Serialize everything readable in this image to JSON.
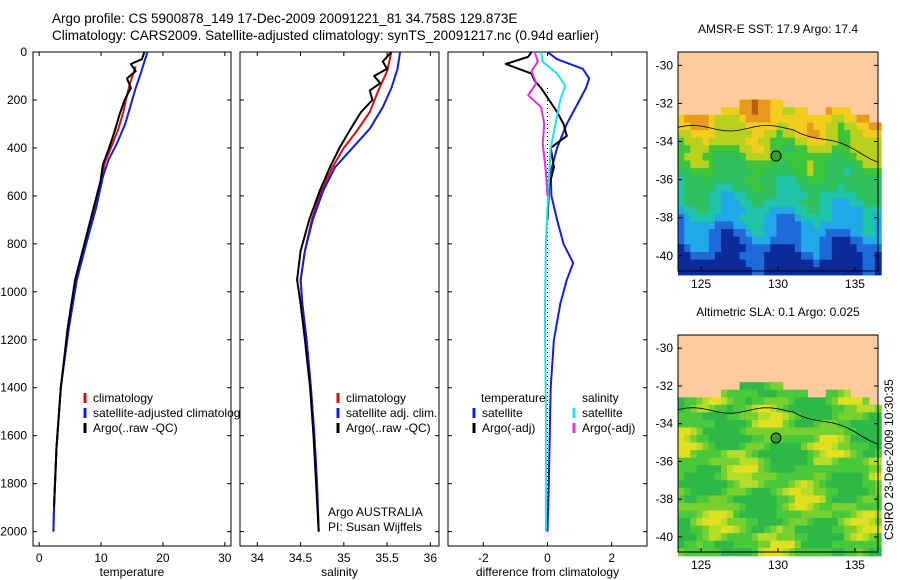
{
  "title_line1": "Argo profile: CS 5900878_149 17-Dec-2009 20091221_81 34.758S 129.873E",
  "title_line2": "Climatology: CARS2009. Satellite-adjusted climatology: synTS_20091217.nc (0.94d earlier)",
  "stamp": "CSIRO 23-Dec-2009 10:30:35",
  "colors": {
    "climatology": "#d01010",
    "satellite": "#1020d8",
    "argo": "#000000",
    "sal_satellite": "#20e0e8",
    "sal_argo": "#e030e0",
    "land": "#fdcb9c"
  },
  "chart_data": [
    {
      "type": "line",
      "name": "temperature-profile",
      "xlabel": "temperature",
      "xlim": [
        -1,
        31
      ],
      "ylim": [
        0,
        2060
      ],
      "xticks": [
        0,
        10,
        20,
        30
      ],
      "yticks": [
        0,
        200,
        400,
        600,
        800,
        1000,
        1200,
        1400,
        1600,
        1800,
        2000
      ],
      "legend": [
        "climatology",
        "satellite-adjusted climatology",
        "Argo(..raw -QC)"
      ],
      "series": [
        {
          "name": "climatology",
          "points": [
            [
              15.6,
              60
            ],
            [
              14.8,
              120
            ],
            [
              14.2,
              180
            ],
            [
              13.6,
              250
            ],
            [
              12.8,
              320
            ],
            [
              11.6,
              400
            ],
            [
              10.6,
              460
            ],
            [
              10.1,
              520
            ],
            [
              9.0,
              650
            ],
            [
              7.5,
              800
            ],
            [
              6.0,
              950
            ],
            [
              4.7,
              1150
            ],
            [
              3.5,
              1400
            ],
            [
              2.8,
              1650
            ],
            [
              2.4,
              1900
            ],
            [
              2.3,
              2000
            ]
          ]
        },
        {
          "name": "satellite-adjusted climatology",
          "points": [
            [
              17.5,
              0
            ],
            [
              17.0,
              40
            ],
            [
              16.4,
              90
            ],
            [
              15.6,
              150
            ],
            [
              14.8,
              220
            ],
            [
              13.9,
              300
            ],
            [
              12.6,
              380
            ],
            [
              11.2,
              450
            ],
            [
              10.3,
              520
            ],
            [
              9.2,
              650
            ],
            [
              7.6,
              800
            ],
            [
              6.1,
              950
            ],
            [
              4.8,
              1150
            ],
            [
              3.5,
              1400
            ],
            [
              2.8,
              1650
            ],
            [
              2.4,
              1900
            ],
            [
              2.3,
              2000
            ]
          ]
        },
        {
          "name": "Argo(..raw -QC)",
          "points": [
            [
              17.0,
              0
            ],
            [
              16.6,
              30
            ],
            [
              14.8,
              50
            ],
            [
              15.6,
              80
            ],
            [
              14.2,
              110
            ],
            [
              14.8,
              150
            ],
            [
              13.8,
              200
            ],
            [
              13.0,
              260
            ],
            [
              12.2,
              330
            ],
            [
              11.3,
              400
            ],
            [
              10.3,
              470
            ],
            [
              9.9,
              540
            ],
            [
              8.8,
              650
            ],
            [
              7.3,
              800
            ],
            [
              5.8,
              950
            ],
            [
              4.6,
              1150
            ],
            [
              3.5,
              1400
            ],
            [
              2.8,
              1650
            ],
            [
              2.4,
              1900
            ]
          ]
        }
      ]
    },
    {
      "type": "line",
      "name": "salinity-profile",
      "xlabel": "salinity",
      "xlim": [
        33.8,
        36.1
      ],
      "ylim": [
        0,
        2060
      ],
      "xticks": [
        34,
        34.5,
        35,
        35.5,
        36
      ],
      "legend": [
        "climatology",
        "satellite adj. clim.",
        "Argo(..raw -QC)"
      ],
      "annotation": [
        "Argo AUSTRALIA",
        "PI: Susan Wijffels"
      ],
      "series": [
        {
          "name": "climatology",
          "points": [
            [
              35.55,
              0
            ],
            [
              35.5,
              80
            ],
            [
              35.4,
              160
            ],
            [
              35.3,
              250
            ],
            [
              35.15,
              330
            ],
            [
              35.0,
              400
            ],
            [
              34.87,
              480
            ],
            [
              34.74,
              580
            ],
            [
              34.63,
              700
            ],
            [
              34.55,
              830
            ],
            [
              34.5,
              950
            ],
            [
              34.52,
              1050
            ],
            [
              34.57,
              1200
            ],
            [
              34.62,
              1400
            ],
            [
              34.66,
              1600
            ],
            [
              34.69,
              1800
            ],
            [
              34.71,
              2000
            ]
          ]
        },
        {
          "name": "satellite adj. clim.",
          "points": [
            [
              35.65,
              0
            ],
            [
              35.62,
              70
            ],
            [
              35.55,
              150
            ],
            [
              35.45,
              230
            ],
            [
              35.3,
              320
            ],
            [
              35.1,
              400
            ],
            [
              34.9,
              480
            ],
            [
              34.76,
              580
            ],
            [
              34.64,
              700
            ],
            [
              34.55,
              830
            ],
            [
              34.5,
              950
            ],
            [
              34.52,
              1050
            ],
            [
              34.57,
              1200
            ],
            [
              34.62,
              1400
            ],
            [
              34.66,
              1600
            ],
            [
              34.69,
              1800
            ],
            [
              34.71,
              2000
            ]
          ]
        },
        {
          "name": "Argo(..raw -QC)",
          "points": [
            [
              35.55,
              0
            ],
            [
              35.45,
              40
            ],
            [
              35.5,
              70
            ],
            [
              35.35,
              100
            ],
            [
              35.42,
              130
            ],
            [
              35.3,
              160
            ],
            [
              35.33,
              200
            ],
            [
              35.2,
              250
            ],
            [
              35.08,
              320
            ],
            [
              34.95,
              400
            ],
            [
              34.84,
              480
            ],
            [
              34.72,
              580
            ],
            [
              34.6,
              700
            ],
            [
              34.5,
              830
            ],
            [
              34.46,
              950
            ],
            [
              34.5,
              1050
            ],
            [
              34.55,
              1200
            ],
            [
              34.61,
              1400
            ],
            [
              34.65,
              1600
            ],
            [
              34.68,
              1800
            ],
            [
              34.71,
              2000
            ]
          ]
        }
      ]
    },
    {
      "type": "line",
      "name": "difference-profile",
      "xlabel": "difference from climatology",
      "xlim": [
        -3.1,
        3.1
      ],
      "ylim": [
        0,
        2060
      ],
      "xticks": [
        -2,
        0,
        2
      ],
      "legend_left": [
        "temperature",
        "satellite",
        "Argo(-adj)"
      ],
      "legend_right": [
        "salinity",
        "satellite",
        "Argo(-adj)"
      ],
      "series": [
        {
          "name": "temperature satellite",
          "points": [
            [
              0,
              0
            ],
            [
              0.3,
              30
            ],
            [
              1.1,
              70
            ],
            [
              1.3,
              110
            ],
            [
              1.2,
              150
            ],
            [
              1.0,
              200
            ],
            [
              0.6,
              300
            ],
            [
              0.3,
              400
            ],
            [
              0.1,
              500
            ],
            [
              0.12,
              600
            ],
            [
              0.3,
              700
            ],
            [
              0.5,
              800
            ],
            [
              0.8,
              880
            ],
            [
              0.6,
              950
            ],
            [
              0.4,
              1050
            ],
            [
              0.2,
              1200
            ],
            [
              0.1,
              1400
            ],
            [
              0.04,
              1800
            ],
            [
              0,
              2000
            ]
          ]
        },
        {
          "name": "temperature Argo(-adj)",
          "points": [
            [
              -0.5,
              0
            ],
            [
              -0.6,
              20
            ],
            [
              -1.3,
              50
            ],
            [
              -0.9,
              70
            ],
            [
              -0.5,
              90
            ],
            [
              -0.4,
              120
            ],
            [
              -0.2,
              150
            ],
            [
              0.3,
              250
            ],
            [
              0.5,
              300
            ],
            [
              0.6,
              350
            ],
            [
              0.3,
              380
            ],
            [
              0.1,
              400
            ],
            [
              0.2,
              480
            ],
            [
              0.05,
              560
            ],
            [
              0.02,
              650
            ],
            [
              0,
              700
            ]
          ]
        },
        {
          "name": "salinity satellite",
          "points": [
            [
              -0.2,
              0
            ],
            [
              -0.15,
              40
            ],
            [
              0.3,
              90
            ],
            [
              0.55,
              140
            ],
            [
              0.4,
              200
            ],
            [
              0.25,
              300
            ],
            [
              0.1,
              400
            ],
            [
              0.02,
              600
            ],
            [
              -0.05,
              800
            ],
            [
              -0.08,
              1100
            ],
            [
              -0.05,
              1500
            ],
            [
              -0.05,
              2000
            ]
          ]
        },
        {
          "name": "salinity Argo(-adj)",
          "points": [
            [
              -0.4,
              0
            ],
            [
              -0.3,
              40
            ],
            [
              -0.5,
              80
            ],
            [
              -0.35,
              130
            ],
            [
              -0.6,
              180
            ],
            [
              -0.2,
              230
            ],
            [
              -0.1,
              300
            ],
            [
              -0.15,
              380
            ],
            [
              -0.05,
              500
            ],
            [
              0,
              600
            ]
          ]
        }
      ]
    }
  ],
  "maps": [
    {
      "title": "AMSR-E SST: 17.9 Argo: 17.4",
      "lon_ticks": [
        125,
        130,
        135
      ],
      "lat_ticks": [
        -30,
        -32,
        -34,
        -36,
        -38,
        -40
      ],
      "lon_range": [
        123.5,
        136.5
      ],
      "lat_range": [
        -29.3,
        -40.8
      ],
      "marker": {
        "lon": 129.873,
        "lat": -34.758
      }
    },
    {
      "title": "Altimetric SLA: 0.1 Argo: 0.025",
      "lon_ticks": [
        125,
        130,
        135
      ],
      "lat_ticks": [
        -30,
        -32,
        -34,
        -36,
        -38,
        -40
      ],
      "lon_range": [
        123.5,
        136.5
      ],
      "lat_range": [
        -29.3,
        -40.8
      ],
      "marker": {
        "lon": 129.873,
        "lat": -34.758
      }
    }
  ]
}
